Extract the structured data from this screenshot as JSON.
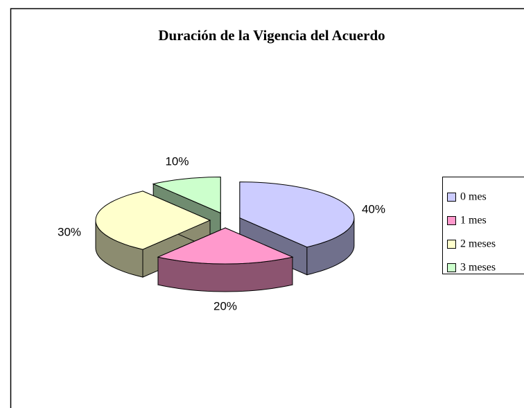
{
  "chart_data": {
    "type": "pie",
    "title": "Duración de la Vigencia del Acuerdo",
    "categories": [
      "0 mes",
      "1 mes",
      "2 meses",
      "3 meses"
    ],
    "values": [
      40,
      20,
      30,
      10
    ],
    "value_labels": [
      "40%",
      "20%",
      "30%",
      "10%"
    ],
    "colors": [
      "#ccccff",
      "#ff99cc",
      "#ffffcc",
      "#ccffcc"
    ],
    "legend": "right"
  }
}
